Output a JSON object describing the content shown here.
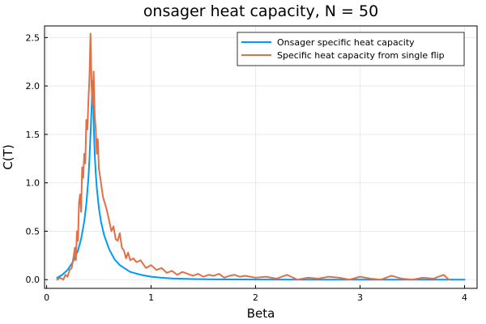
{
  "chart_data": {
    "type": "line",
    "title": "onsager heat capacity, N = 50",
    "xlabel": "Beta",
    "ylabel": "C(T)",
    "xlim": [
      -0.02,
      4.12
    ],
    "ylim": [
      -0.09,
      2.62
    ],
    "xticks": [
      0,
      1,
      2,
      3,
      4
    ],
    "xtick_labels": [
      "0",
      "1",
      "2",
      "3",
      "4"
    ],
    "yticks": [
      0.0,
      0.5,
      1.0,
      1.5,
      2.0,
      2.5
    ],
    "ytick_labels": [
      "0.0",
      "0.5",
      "1.0",
      "1.5",
      "2.0",
      "2.5"
    ],
    "grid": true,
    "legend_position": "top-right",
    "series": [
      {
        "name": "Onsager specific heat capacity",
        "color": "#009af9",
        "x": [
          0.1,
          0.15,
          0.2,
          0.25,
          0.3,
          0.33,
          0.36,
          0.38,
          0.4,
          0.41,
          0.42,
          0.43,
          0.435,
          0.44,
          0.445,
          0.45,
          0.46,
          0.47,
          0.48,
          0.5,
          0.52,
          0.55,
          0.6,
          0.65,
          0.7,
          0.8,
          0.9,
          1.0,
          1.1,
          1.2,
          1.4,
          1.6,
          1.8,
          2.0,
          2.5,
          3.0,
          3.5,
          4.0
        ],
        "y": [
          0.02,
          0.05,
          0.1,
          0.18,
          0.3,
          0.42,
          0.6,
          0.78,
          1.05,
          1.25,
          1.5,
          1.76,
          1.95,
          2.05,
          1.9,
          1.62,
          1.3,
          1.1,
          0.95,
          0.74,
          0.6,
          0.46,
          0.31,
          0.21,
          0.15,
          0.08,
          0.05,
          0.03,
          0.02,
          0.013,
          0.006,
          0.003,
          0.0015,
          0.001,
          0.0004,
          0.0002,
          0.0001,
          0.0
        ]
      },
      {
        "name": "Specific heat capacity from single flip",
        "color": "#e26f46",
        "x": [
          0.1,
          0.13,
          0.16,
          0.18,
          0.2,
          0.22,
          0.24,
          0.26,
          0.27,
          0.28,
          0.29,
          0.3,
          0.31,
          0.32,
          0.33,
          0.34,
          0.35,
          0.36,
          0.37,
          0.38,
          0.39,
          0.4,
          0.41,
          0.42,
          0.43,
          0.44,
          0.45,
          0.46,
          0.47,
          0.48,
          0.49,
          0.5,
          0.52,
          0.54,
          0.56,
          0.58,
          0.6,
          0.62,
          0.64,
          0.66,
          0.68,
          0.7,
          0.72,
          0.74,
          0.76,
          0.78,
          0.8,
          0.83,
          0.86,
          0.9,
          0.95,
          1.0,
          1.05,
          1.1,
          1.15,
          1.2,
          1.25,
          1.3,
          1.35,
          1.4,
          1.45,
          1.5,
          1.55,
          1.6,
          1.65,
          1.7,
          1.75,
          1.8,
          1.85,
          1.9,
          2.0,
          2.1,
          2.2,
          2.3,
          2.4,
          2.5,
          2.6,
          2.7,
          2.8,
          2.9,
          3.0,
          3.1,
          3.2,
          3.3,
          3.4,
          3.5,
          3.6,
          3.7,
          3.8,
          3.85
        ],
        "y": [
          0.0,
          0.02,
          0.0,
          0.05,
          0.03,
          0.1,
          0.12,
          0.25,
          0.33,
          0.2,
          0.5,
          0.4,
          0.8,
          0.88,
          0.7,
          1.16,
          1.05,
          1.3,
          1.2,
          1.65,
          1.55,
          1.85,
          2.1,
          2.54,
          2.0,
          1.8,
          2.15,
          1.7,
          1.55,
          1.3,
          1.45,
          1.15,
          1.0,
          0.85,
          0.78,
          0.7,
          0.6,
          0.5,
          0.55,
          0.42,
          0.4,
          0.48,
          0.33,
          0.3,
          0.22,
          0.28,
          0.2,
          0.22,
          0.18,
          0.2,
          0.12,
          0.15,
          0.1,
          0.12,
          0.07,
          0.09,
          0.05,
          0.08,
          0.06,
          0.04,
          0.06,
          0.03,
          0.05,
          0.04,
          0.06,
          0.02,
          0.04,
          0.05,
          0.03,
          0.04,
          0.02,
          0.03,
          0.01,
          0.05,
          0.0,
          0.02,
          0.01,
          0.03,
          0.02,
          0.0,
          0.03,
          0.01,
          0.0,
          0.04,
          0.01,
          0.0,
          0.02,
          0.01,
          0.05,
          0.0
        ]
      }
    ]
  }
}
